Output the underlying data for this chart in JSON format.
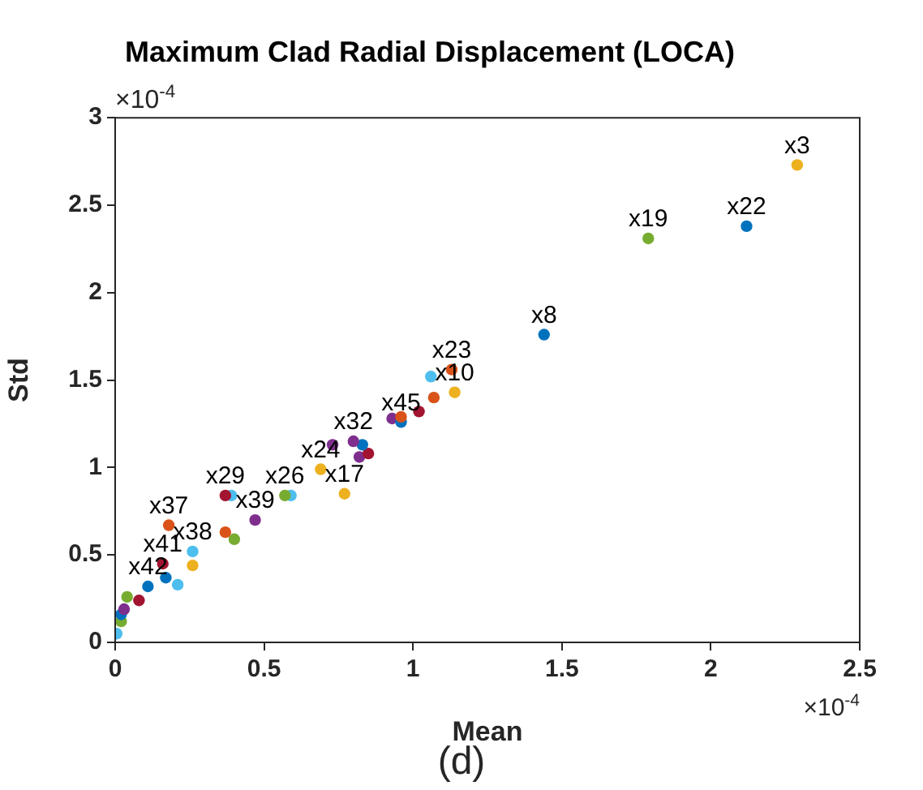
{
  "chart_data": {
    "type": "scatter",
    "title": "Maximum Clad Radial Displacement (LOCA)",
    "xlabel": "Mean",
    "ylabel": "Std",
    "annotations": [
      "×10$^{-4}$",
      "×10$^{-4}$",
      "(d)"
    ],
    "xlim": [
      0,
      2.5
    ],
    "xticks": [
      0,
      0.5,
      1,
      1.5,
      2,
      2.5
    ],
    "ylim": [
      0,
      3
    ],
    "yticks": [
      0,
      0.5,
      1,
      1.5,
      2,
      2.5,
      3
    ],
    "grid": false,
    "legend": false,
    "marker": "circle",
    "series": [
      {
        "name": "x3",
        "color": "#edb120",
        "x": [
          2.29
        ],
        "values": [
          2.73
        ]
      },
      {
        "name": "x22",
        "color": "#0072bd",
        "x": [
          2.12
        ],
        "values": [
          2.38
        ]
      },
      {
        "name": "x19",
        "color": "#77ac30",
        "x": [
          1.79
        ],
        "values": [
          2.31
        ]
      },
      {
        "name": "x8",
        "color": "#0072bd",
        "x": [
          1.44
        ],
        "values": [
          1.76
        ]
      },
      {
        "name": "x23",
        "color": "#d95319",
        "x": [
          1.13
        ],
        "values": [
          1.56
        ]
      },
      {
        "color": "#4dbeee",
        "x": [
          1.06
        ],
        "values": [
          1.52
        ]
      },
      {
        "name": "x10",
        "color": "#edb120",
        "x": [
          1.14
        ],
        "values": [
          1.43
        ]
      },
      {
        "color": "#d95319",
        "x": [
          1.07
        ],
        "values": [
          1.4
        ]
      },
      {
        "color": "#a2142f",
        "x": [
          1.02
        ],
        "values": [
          1.32
        ]
      },
      {
        "color": "#d95319",
        "x": [
          0.96
        ],
        "values": [
          1.29
        ]
      },
      {
        "name": "x45",
        "color": "#0072bd",
        "x": [
          0.96
        ],
        "values": [
          1.26
        ]
      },
      {
        "color": "#7e2f8e",
        "x": [
          0.93
        ],
        "values": [
          1.28
        ]
      },
      {
        "name": "x32",
        "color": "#7e2f8e",
        "x": [
          0.8
        ],
        "values": [
          1.15
        ]
      },
      {
        "color": "#7e2f8e",
        "x": [
          0.73
        ],
        "values": [
          1.13
        ]
      },
      {
        "color": "#0072bd",
        "x": [
          0.83
        ],
        "values": [
          1.13
        ]
      },
      {
        "color": "#a2142f",
        "x": [
          0.85
        ],
        "values": [
          1.08
        ]
      },
      {
        "color": "#7e2f8e",
        "x": [
          0.82
        ],
        "values": [
          1.06
        ]
      },
      {
        "name": "x24",
        "color": "#edb120",
        "x": [
          0.69
        ],
        "values": [
          0.99
        ]
      },
      {
        "name": "x17",
        "color": "#edb120",
        "x": [
          0.77
        ],
        "values": [
          0.85
        ]
      },
      {
        "name": "x26",
        "color": "#77ac30",
        "x": [
          0.57
        ],
        "values": [
          0.84
        ]
      },
      {
        "color": "#4dbeee",
        "x": [
          0.59
        ],
        "values": [
          0.84
        ]
      },
      {
        "name": "x29",
        "color": "#a2142f",
        "x": [
          0.37
        ],
        "values": [
          0.84
        ]
      },
      {
        "color": "#4dbeee",
        "x": [
          0.39
        ],
        "values": [
          0.84
        ]
      },
      {
        "name": "x39",
        "color": "#7e2f8e",
        "x": [
          0.47
        ],
        "values": [
          0.7
        ]
      },
      {
        "color": "#d95319",
        "x": [
          0.37
        ],
        "values": [
          0.63
        ]
      },
      {
        "color": "#77ac30",
        "x": [
          0.4
        ],
        "values": [
          0.59
        ]
      },
      {
        "name": "x37",
        "color": "#d95319",
        "x": [
          0.18
        ],
        "values": [
          0.67
        ]
      },
      {
        "name": "x38",
        "color": "#4dbeee",
        "x": [
          0.26
        ],
        "values": [
          0.52
        ]
      },
      {
        "color": "#edb120",
        "x": [
          0.26
        ],
        "values": [
          0.44
        ]
      },
      {
        "name": "x41",
        "color": "#a2142f",
        "x": [
          0.16
        ],
        "values": [
          0.45
        ]
      },
      {
        "color": "#0072bd",
        "x": [
          0.17
        ],
        "values": [
          0.37
        ]
      },
      {
        "color": "#4dbeee",
        "x": [
          0.21
        ],
        "values": [
          0.33
        ]
      },
      {
        "name": "x42",
        "color": "#0072bd",
        "x": [
          0.11
        ],
        "values": [
          0.32
        ]
      },
      {
        "color": "#a2142f",
        "x": [
          0.08
        ],
        "values": [
          0.24
        ]
      },
      {
        "color": "#77ac30",
        "x": [
          0.04
        ],
        "values": [
          0.26
        ]
      },
      {
        "color": "#7e2f8e",
        "x": [
          0.03
        ],
        "values": [
          0.19
        ]
      },
      {
        "color": "#0072bd",
        "x": [
          0.02
        ],
        "values": [
          0.16
        ]
      },
      {
        "color": "#77ac30",
        "x": [
          0.02
        ],
        "values": [
          0.12
        ]
      },
      {
        "color": "#4dbeee",
        "x": [
          0.005
        ],
        "values": [
          0.05
        ]
      }
    ]
  }
}
